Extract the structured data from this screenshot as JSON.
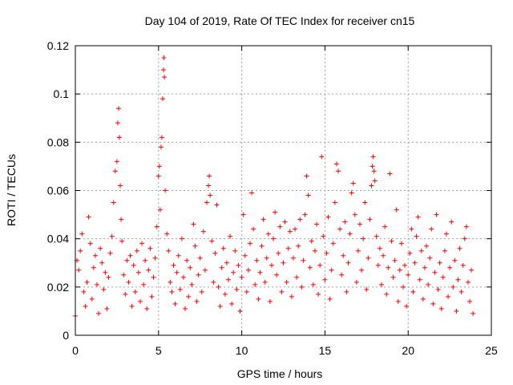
{
  "chart_data": {
    "type": "scatter",
    "title": "Day 104 of 2019, Rate Of TEC Index for receiver cn15",
    "xlabel": "GPS time / hours",
    "ylabel": "ROTI / TECUs",
    "xlim": [
      0,
      25
    ],
    "ylim": [
      0,
      0.12
    ],
    "x_ticks": [
      0,
      5,
      10,
      15,
      20,
      25
    ],
    "x_tick_labels": [
      "0",
      "5",
      "10",
      "15",
      "20",
      "25"
    ],
    "y_ticks": [
      0,
      0.02,
      0.04,
      0.06,
      0.08,
      0.1,
      0.12
    ],
    "y_tick_labels": [
      "0",
      "0.02",
      "0.04",
      "0.06",
      "0.08",
      "0.1",
      "0.12"
    ],
    "grid": true,
    "marker": "+",
    "color": "#ff0000",
    "series": [
      {
        "name": "ROTI",
        "points": [
          [
            0.0,
            0.008
          ],
          [
            0.1,
            0.031
          ],
          [
            0.2,
            0.027
          ],
          [
            0.3,
            0.035
          ],
          [
            0.4,
            0.042
          ],
          [
            0.5,
            0.018
          ],
          [
            0.6,
            0.012
          ],
          [
            0.7,
            0.022
          ],
          [
            0.8,
            0.049
          ],
          [
            0.9,
            0.038
          ],
          [
            1.0,
            0.015
          ],
          [
            1.1,
            0.028
          ],
          [
            1.2,
            0.033
          ],
          [
            1.3,
            0.021
          ],
          [
            1.4,
            0.009
          ],
          [
            1.5,
            0.036
          ],
          [
            1.6,
            0.03
          ],
          [
            1.7,
            0.019
          ],
          [
            1.8,
            0.026
          ],
          [
            1.9,
            0.011
          ],
          [
            2.0,
            0.024
          ],
          [
            2.1,
            0.034
          ],
          [
            2.2,
            0.041
          ],
          [
            2.3,
            0.055
          ],
          [
            2.4,
            0.068
          ],
          [
            2.5,
            0.072
          ],
          [
            2.55,
            0.088
          ],
          [
            2.6,
            0.094
          ],
          [
            2.65,
            0.082
          ],
          [
            2.7,
            0.062
          ],
          [
            2.75,
            0.048
          ],
          [
            2.8,
            0.039
          ],
          [
            2.9,
            0.025
          ],
          [
            3.0,
            0.017
          ],
          [
            3.1,
            0.031
          ],
          [
            3.2,
            0.022
          ],
          [
            3.3,
            0.033
          ],
          [
            3.4,
            0.012
          ],
          [
            3.5,
            0.029
          ],
          [
            3.6,
            0.018
          ],
          [
            3.7,
            0.035
          ],
          [
            3.8,
            0.026
          ],
          [
            3.9,
            0.014
          ],
          [
            4.0,
            0.038
          ],
          [
            4.1,
            0.021
          ],
          [
            4.2,
            0.031
          ],
          [
            4.3,
            0.011
          ],
          [
            4.4,
            0.027
          ],
          [
            4.5,
            0.036
          ],
          [
            4.6,
            0.016
          ],
          [
            4.7,
            0.024
          ],
          [
            4.8,
            0.032
          ],
          [
            4.9,
            0.045
          ],
          [
            5.0,
            0.066
          ],
          [
            5.05,
            0.07
          ],
          [
            5.1,
            0.052
          ],
          [
            5.15,
            0.078
          ],
          [
            5.2,
            0.082
          ],
          [
            5.25,
            0.098
          ],
          [
            5.3,
            0.11
          ],
          [
            5.32,
            0.115
          ],
          [
            5.35,
            0.107
          ],
          [
            5.4,
            0.06
          ],
          [
            5.5,
            0.042
          ],
          [
            5.6,
            0.035
          ],
          [
            5.7,
            0.022
          ],
          [
            5.8,
            0.018
          ],
          [
            5.9,
            0.029
          ],
          [
            6.0,
            0.013
          ],
          [
            6.1,
            0.026
          ],
          [
            6.2,
            0.033
          ],
          [
            6.3,
            0.019
          ],
          [
            6.4,
            0.04
          ],
          [
            6.5,
            0.024
          ],
          [
            6.6,
            0.011
          ],
          [
            6.7,
            0.031
          ],
          [
            6.8,
            0.016
          ],
          [
            6.9,
            0.028
          ],
          [
            7.0,
            0.021
          ],
          [
            7.1,
            0.046
          ],
          [
            7.2,
            0.037
          ],
          [
            7.3,
            0.014
          ],
          [
            7.4,
            0.025
          ],
          [
            7.5,
            0.032
          ],
          [
            7.6,
            0.018
          ],
          [
            7.7,
            0.043
          ],
          [
            7.8,
            0.027
          ],
          [
            7.9,
            0.055
          ],
          [
            8.0,
            0.062
          ],
          [
            8.05,
            0.066
          ],
          [
            8.1,
            0.058
          ],
          [
            8.2,
            0.039
          ],
          [
            8.3,
            0.022
          ],
          [
            8.4,
            0.034
          ],
          [
            8.5,
            0.054
          ],
          [
            8.6,
            0.02
          ],
          [
            8.7,
            0.012
          ],
          [
            8.8,
            0.028
          ],
          [
            8.9,
            0.036
          ],
          [
            9.0,
            0.017
          ],
          [
            9.1,
            0.03
          ],
          [
            9.2,
            0.023
          ],
          [
            9.3,
            0.041
          ],
          [
            9.4,
            0.013
          ],
          [
            9.5,
            0.026
          ],
          [
            9.6,
            0.035
          ],
          [
            9.7,
            0.019
          ],
          [
            9.8,
            0.029
          ],
          [
            9.9,
            0.01
          ],
          [
            10.0,
            0.024
          ],
          [
            10.1,
            0.05
          ],
          [
            10.2,
            0.033
          ],
          [
            10.3,
            0.018
          ],
          [
            10.4,
            0.027
          ],
          [
            10.5,
            0.038
          ],
          [
            10.6,
            0.059
          ],
          [
            10.7,
            0.044
          ],
          [
            10.8,
            0.021
          ],
          [
            10.9,
            0.031
          ],
          [
            11.0,
            0.015
          ],
          [
            11.1,
            0.026
          ],
          [
            11.2,
            0.037
          ],
          [
            11.3,
            0.048
          ],
          [
            11.4,
            0.022
          ],
          [
            11.5,
            0.032
          ],
          [
            11.6,
            0.042
          ],
          [
            11.7,
            0.014
          ],
          [
            11.8,
            0.029
          ],
          [
            11.9,
            0.04
          ],
          [
            12.0,
            0.051
          ],
          [
            12.1,
            0.025
          ],
          [
            12.2,
            0.034
          ],
          [
            12.3,
            0.045
          ],
          [
            12.4,
            0.018
          ],
          [
            12.5,
            0.03
          ],
          [
            12.6,
            0.047
          ],
          [
            12.7,
            0.022
          ],
          [
            12.8,
            0.036
          ],
          [
            12.9,
            0.043
          ],
          [
            13.0,
            0.016
          ],
          [
            13.1,
            0.032
          ],
          [
            13.2,
            0.044
          ],
          [
            13.3,
            0.024
          ],
          [
            13.4,
            0.037
          ],
          [
            13.5,
            0.048
          ],
          [
            13.6,
            0.02
          ],
          [
            13.7,
            0.031
          ],
          [
            13.8,
            0.05
          ],
          [
            13.9,
            0.066
          ],
          [
            14.0,
            0.058
          ],
          [
            14.1,
            0.028
          ],
          [
            14.2,
            0.039
          ],
          [
            14.3,
            0.021
          ],
          [
            14.4,
            0.035
          ],
          [
            14.5,
            0.046
          ],
          [
            14.6,
            0.017
          ],
          [
            14.7,
            0.029
          ],
          [
            14.8,
            0.074
          ],
          [
            14.9,
            0.041
          ],
          [
            15.0,
            0.023
          ],
          [
            15.1,
            0.034
          ],
          [
            15.2,
            0.049
          ],
          [
            15.3,
            0.015
          ],
          [
            15.4,
            0.027
          ],
          [
            15.5,
            0.038
          ],
          [
            15.6,
            0.055
          ],
          [
            15.7,
            0.071
          ],
          [
            15.8,
            0.068
          ],
          [
            15.9,
            0.044
          ],
          [
            16.0,
            0.025
          ],
          [
            16.1,
            0.033
          ],
          [
            16.2,
            0.047
          ],
          [
            16.3,
            0.018
          ],
          [
            16.4,
            0.03
          ],
          [
            16.5,
            0.042
          ],
          [
            16.6,
            0.059
          ],
          [
            16.7,
            0.063
          ],
          [
            16.8,
            0.05
          ],
          [
            16.9,
            0.022
          ],
          [
            17.0,
            0.035
          ],
          [
            17.1,
            0.046
          ],
          [
            17.2,
            0.027
          ],
          [
            17.3,
            0.04
          ],
          [
            17.4,
            0.055
          ],
          [
            17.5,
            0.019
          ],
          [
            17.6,
            0.032
          ],
          [
            17.7,
            0.048
          ],
          [
            17.8,
            0.062
          ],
          [
            17.85,
            0.07
          ],
          [
            17.9,
            0.074
          ],
          [
            17.95,
            0.068
          ],
          [
            18.0,
            0.064
          ],
          [
            18.1,
            0.041
          ],
          [
            18.2,
            0.029
          ],
          [
            18.3,
            0.036
          ],
          [
            18.4,
            0.021
          ],
          [
            18.5,
            0.033
          ],
          [
            18.6,
            0.045
          ],
          [
            18.7,
            0.017
          ],
          [
            18.8,
            0.028
          ],
          [
            18.9,
            0.067
          ],
          [
            19.0,
            0.039
          ],
          [
            19.1,
            0.024
          ],
          [
            19.2,
            0.031
          ],
          [
            19.3,
            0.052
          ],
          [
            19.4,
            0.014
          ],
          [
            19.5,
            0.027
          ],
          [
            19.6,
            0.038
          ],
          [
            19.7,
            0.02
          ],
          [
            19.8,
            0.029
          ],
          [
            19.9,
            0.012
          ],
          [
            20.0,
            0.025
          ],
          [
            20.1,
            0.034
          ],
          [
            20.2,
            0.044
          ],
          [
            20.3,
            0.018
          ],
          [
            20.4,
            0.03
          ],
          [
            20.5,
            0.041
          ],
          [
            20.6,
            0.049
          ],
          [
            20.7,
            0.023
          ],
          [
            20.8,
            0.035
          ],
          [
            20.9,
            0.015
          ],
          [
            21.0,
            0.028
          ],
          [
            21.1,
            0.037
          ],
          [
            21.2,
            0.021
          ],
          [
            21.3,
            0.032
          ],
          [
            21.4,
            0.044
          ],
          [
            21.5,
            0.013
          ],
          [
            21.6,
            0.026
          ],
          [
            21.7,
            0.05
          ],
          [
            21.8,
            0.019
          ],
          [
            21.9,
            0.03
          ],
          [
            22.0,
            0.011
          ],
          [
            22.1,
            0.024
          ],
          [
            22.2,
            0.035
          ],
          [
            22.3,
            0.042
          ],
          [
            22.4,
            0.016
          ],
          [
            22.5,
            0.028
          ],
          [
            22.6,
            0.047
          ],
          [
            22.7,
            0.02
          ],
          [
            22.8,
            0.031
          ],
          [
            22.9,
            0.01
          ],
          [
            23.0,
            0.023
          ],
          [
            23.1,
            0.036
          ],
          [
            23.2,
            0.018
          ],
          [
            23.3,
            0.029
          ],
          [
            23.4,
            0.04
          ],
          [
            23.5,
            0.045
          ],
          [
            23.6,
            0.022
          ],
          [
            23.7,
            0.014
          ],
          [
            23.8,
            0.027
          ],
          [
            23.9,
            0.009
          ]
        ]
      }
    ]
  }
}
